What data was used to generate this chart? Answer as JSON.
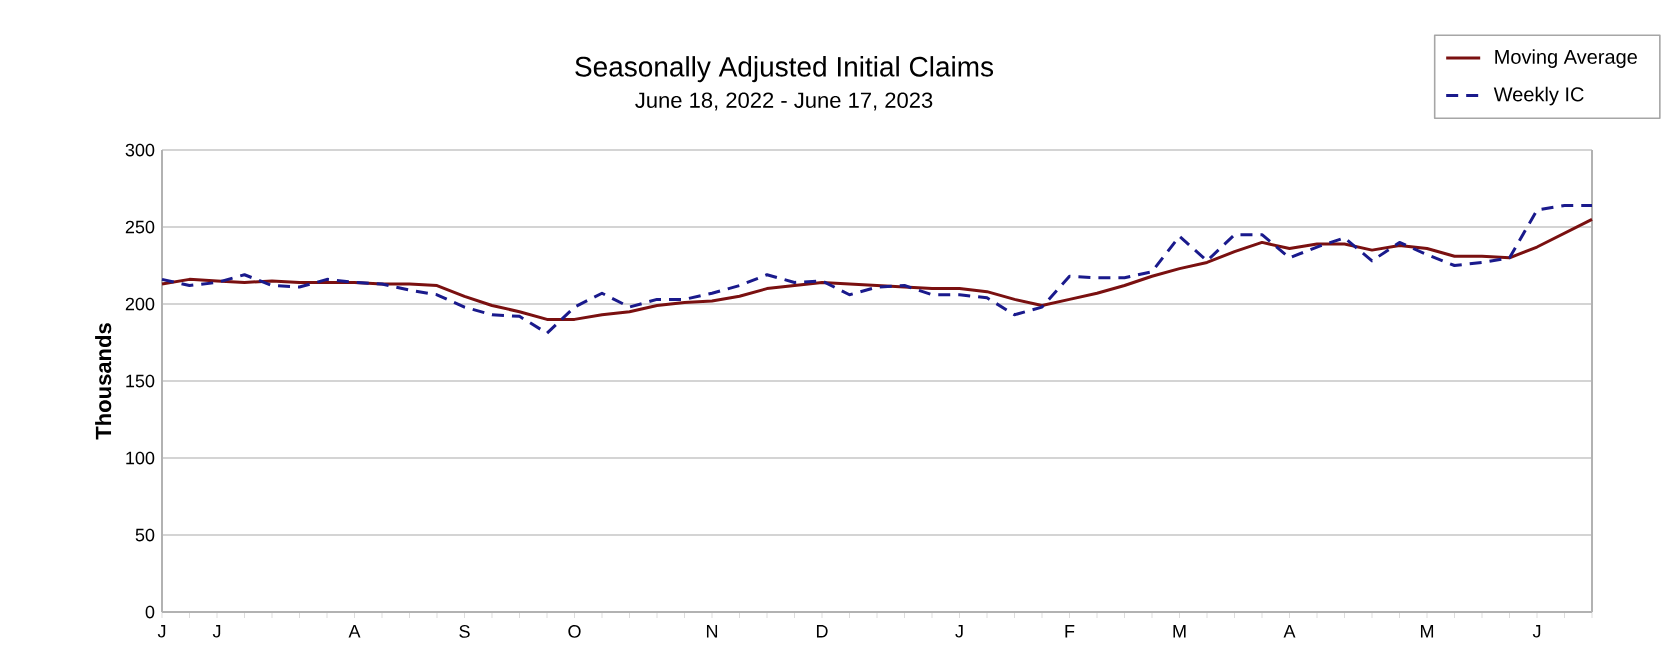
{
  "chart_data": {
    "type": "line",
    "title": "Seasonally Adjusted Initial Claims",
    "subtitle": "June 18, 2022 - June 17, 2023",
    "ylabel": "Thousands",
    "categories": [
      "J",
      null,
      "J",
      null,
      null,
      null,
      null,
      "A",
      null,
      null,
      null,
      "S",
      null,
      null,
      null,
      "O",
      null,
      null,
      null,
      null,
      "N",
      null,
      null,
      null,
      "D",
      null,
      null,
      null,
      null,
      "J",
      null,
      null,
      null,
      "F",
      null,
      null,
      null,
      "M",
      null,
      null,
      null,
      "A",
      null,
      null,
      null,
      null,
      "M",
      null,
      null,
      null,
      "J",
      null,
      null
    ],
    "series": [
      {
        "name": "Moving Average",
        "color": "#7a1010",
        "line_style": "solid",
        "values": [
          213,
          216,
          215,
          214,
          215,
          214,
          214,
          214,
          213,
          213,
          212,
          205,
          199,
          195,
          190,
          190,
          193,
          195,
          199,
          201,
          202,
          205,
          210,
          212,
          214,
          213,
          212,
          211,
          210,
          210,
          208,
          203,
          199,
          203,
          207,
          212,
          218,
          223,
          227,
          234,
          240,
          236,
          239,
          239,
          235,
          238,
          236,
          231,
          231,
          230,
          237,
          246,
          255
        ]
      },
      {
        "name": "Weekly IC",
        "color": "#1a1a8c",
        "line_style": "dashed",
        "values": [
          216,
          212,
          214,
          219,
          212,
          211,
          216,
          214,
          213,
          209,
          206,
          198,
          193,
          192,
          181,
          198,
          207,
          198,
          203,
          203,
          207,
          212,
          219,
          214,
          215,
          206,
          211,
          212,
          206,
          206,
          204,
          193,
          198,
          218,
          217,
          217,
          221,
          244,
          228,
          245,
          245,
          230,
          237,
          243,
          228,
          240,
          232,
          225,
          227,
          230,
          261,
          264,
          264
        ]
      }
    ],
    "ylim": [
      0,
      300
    ],
    "yticks": [
      0,
      50,
      100,
      150,
      200,
      250,
      300
    ],
    "grid": "y",
    "legend": "top right",
    "marker": "none"
  }
}
